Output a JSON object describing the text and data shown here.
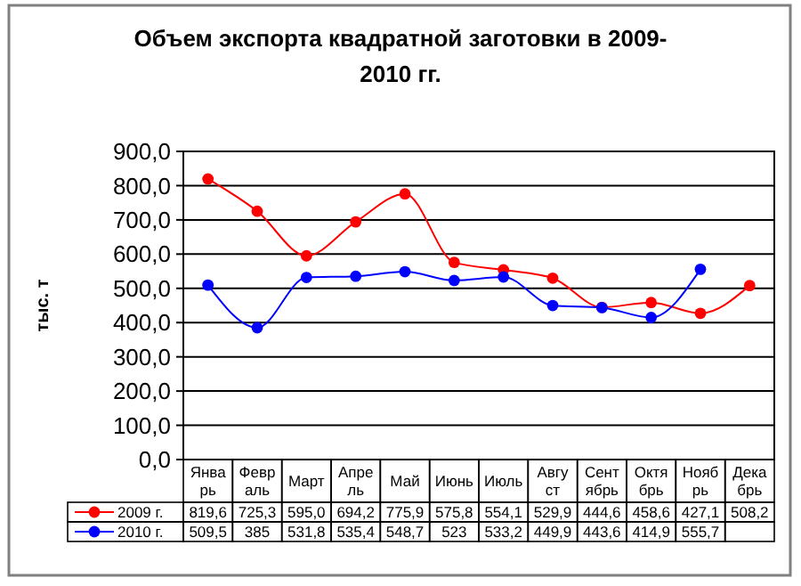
{
  "chart_data": {
    "type": "line",
    "title": "Объем экспорта квадратной заготовки в 2009-2010 гг.",
    "ylabel": "тыс. т",
    "categories": [
      "Январь",
      "Февраль",
      "Март",
      "Апрель",
      "Май",
      "Июнь",
      "Июль",
      "Август",
      "Сентябрь",
      "Октябрь",
      "Ноябрь",
      "Декабрь"
    ],
    "series": [
      {
        "name": "2009 г.",
        "color": "#ff0000",
        "values": [
          819.6,
          725.3,
          595.0,
          694.2,
          775.9,
          575.8,
          554.1,
          529.9,
          444.6,
          458.6,
          427.1,
          508.2
        ],
        "value_labels": [
          "819,6",
          "725,3",
          "595,0",
          "694,2",
          "775,9",
          "575,8",
          "554,1",
          "529,9",
          "444,6",
          "458,6",
          "427,1",
          "508,2"
        ]
      },
      {
        "name": "2010 г.",
        "color": "#0000ff",
        "values": [
          509.5,
          385,
          531.8,
          535.4,
          548.7,
          523,
          533.2,
          449.9,
          443.6,
          414.9,
          555.7,
          null
        ],
        "value_labels": [
          "509,5",
          "385",
          "531,8",
          "535,4",
          "548,7",
          "523",
          "533,2",
          "449,9",
          "443,6",
          "414,9",
          "555,7",
          null
        ]
      }
    ],
    "ylim": [
      0,
      900
    ],
    "yticks": [
      {
        "value": 0,
        "label": "0,0"
      },
      {
        "value": 100,
        "label": "100,0"
      },
      {
        "value": 200,
        "label": "200,0"
      },
      {
        "value": 300,
        "label": "300,0"
      },
      {
        "value": 400,
        "label": "400,0"
      },
      {
        "value": 500,
        "label": "500,0"
      },
      {
        "value": 600,
        "label": "600,0"
      },
      {
        "value": 700,
        "label": "700,0"
      },
      {
        "value": 800,
        "label": "800,0"
      },
      {
        "value": 900,
        "label": "900,0"
      }
    ],
    "grid": "y",
    "marker": "circle",
    "line_style": "solid",
    "legend": "bottom"
  }
}
